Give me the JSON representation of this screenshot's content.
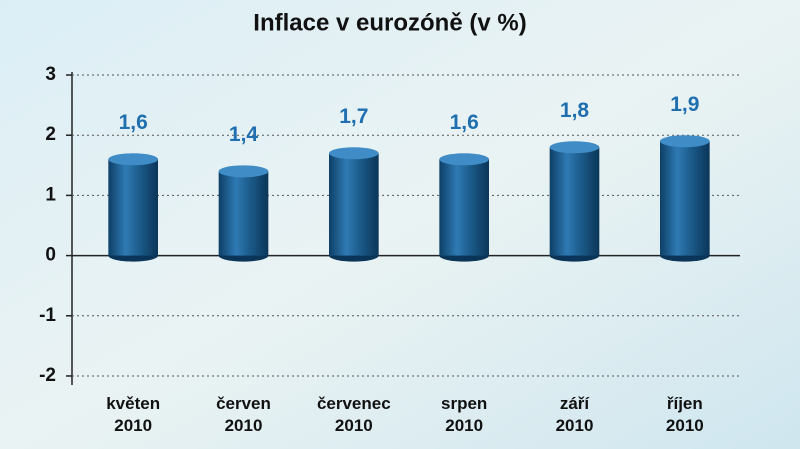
{
  "chart_data": {
    "type": "bar",
    "title": "Inflace v eurozóně (v %)",
    "categories": [
      "květen 2010",
      "červen 2010",
      "červenec 2010",
      "srpen 2010",
      "září 2010",
      "říjen 2010"
    ],
    "values": [
      1.6,
      1.4,
      1.7,
      1.6,
      1.8,
      1.9
    ],
    "value_labels": [
      "1,6",
      "1,4",
      "1,7",
      "1,6",
      "1,8",
      "1,9"
    ],
    "color": "#1d5e8e",
    "ylim": [
      -2.15,
      3.05
    ],
    "yticks": [
      -2,
      -1,
      0,
      1,
      2,
      3
    ],
    "grid": true
  }
}
